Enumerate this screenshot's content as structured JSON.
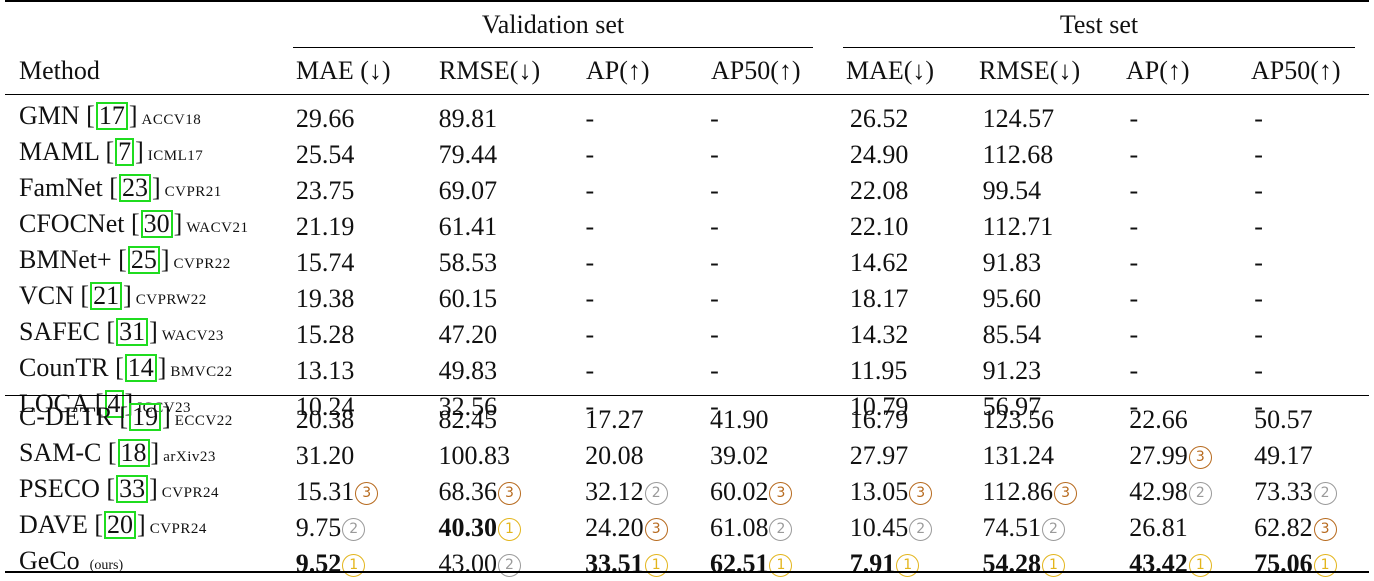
{
  "groups": {
    "validation": "Validation set",
    "test": "Test set"
  },
  "columns": [
    "Method",
    "MAE (↓)",
    "RMSE(↓)",
    "AP(↑)",
    "AP50(↑)",
    "MAE(↓)",
    "RMSE(↓)",
    "AP(↑)",
    "AP50(↑)"
  ],
  "rank_colors": {
    "1": "#e3b51c",
    "2": "#9a9a9a",
    "3": "#b76a1e"
  },
  "section1": [
    {
      "name": "GMN",
      "cite": "17",
      "venue": "ACCV18",
      "cells": [
        {
          "v": "29.66"
        },
        {
          "v": "89.81"
        },
        {
          "v": "-"
        },
        {
          "v": "-"
        },
        {
          "v": "26.52"
        },
        {
          "v": "124.57"
        },
        {
          "v": "-"
        },
        {
          "v": "-"
        }
      ]
    },
    {
      "name": "MAML",
      "cite": "7",
      "venue": "ICML17",
      "cells": [
        {
          "v": "25.54"
        },
        {
          "v": "79.44"
        },
        {
          "v": "-"
        },
        {
          "v": "-"
        },
        {
          "v": "24.90"
        },
        {
          "v": "112.68"
        },
        {
          "v": "-"
        },
        {
          "v": "-"
        }
      ]
    },
    {
      "name": "FamNet",
      "cite": "23",
      "venue": "CVPR21",
      "cells": [
        {
          "v": "23.75"
        },
        {
          "v": "69.07"
        },
        {
          "v": "-"
        },
        {
          "v": "-"
        },
        {
          "v": "22.08"
        },
        {
          "v": "99.54"
        },
        {
          "v": "-"
        },
        {
          "v": "-"
        }
      ]
    },
    {
      "name": "CFOCNet",
      "cite": "30",
      "venue": "WACV21",
      "cells": [
        {
          "v": "21.19"
        },
        {
          "v": "61.41"
        },
        {
          "v": "-"
        },
        {
          "v": "-"
        },
        {
          "v": "22.10"
        },
        {
          "v": "112.71"
        },
        {
          "v": "-"
        },
        {
          "v": "-"
        }
      ]
    },
    {
      "name": "BMNet+",
      "cite": "25",
      "venue": "CVPR22",
      "cells": [
        {
          "v": "15.74"
        },
        {
          "v": "58.53"
        },
        {
          "v": "-"
        },
        {
          "v": "-"
        },
        {
          "v": "14.62"
        },
        {
          "v": "91.83"
        },
        {
          "v": "-"
        },
        {
          "v": "-"
        }
      ]
    },
    {
      "name": "VCN",
      "cite": "21",
      "venue": "CVPRW22",
      "cells": [
        {
          "v": "19.38"
        },
        {
          "v": "60.15"
        },
        {
          "v": "-"
        },
        {
          "v": "-"
        },
        {
          "v": "18.17"
        },
        {
          "v": "95.60"
        },
        {
          "v": "-"
        },
        {
          "v": "-"
        }
      ]
    },
    {
      "name": "SAFEC",
      "cite": "31",
      "venue": "WACV23",
      "cells": [
        {
          "v": "15.28"
        },
        {
          "v": "47.20"
        },
        {
          "v": "-"
        },
        {
          "v": "-"
        },
        {
          "v": "14.32"
        },
        {
          "v": "85.54"
        },
        {
          "v": "-"
        },
        {
          "v": "-"
        }
      ]
    },
    {
      "name": "CounTR",
      "cite": "14",
      "venue": "BMVC22",
      "cells": [
        {
          "v": "13.13"
        },
        {
          "v": "49.83"
        },
        {
          "v": "-"
        },
        {
          "v": "-"
        },
        {
          "v": "11.95"
        },
        {
          "v": "91.23"
        },
        {
          "v": "-"
        },
        {
          "v": "-"
        }
      ]
    },
    {
      "name": "LOCA",
      "cite": "4",
      "venue": "ICCV23",
      "cells": [
        {
          "v": "10.24"
        },
        {
          "v": "32.56"
        },
        {
          "v": "-"
        },
        {
          "v": "-"
        },
        {
          "v": "10.79"
        },
        {
          "v": "56.97"
        },
        {
          "v": "-"
        },
        {
          "v": "-"
        }
      ]
    }
  ],
  "section2": [
    {
      "name": "C-DETR",
      "cite": "19",
      "venue": "ECCV22",
      "cells": [
        {
          "v": "20.38"
        },
        {
          "v": "82.45"
        },
        {
          "v": "17.27"
        },
        {
          "v": "41.90"
        },
        {
          "v": "16.79"
        },
        {
          "v": "123.56"
        },
        {
          "v": "22.66"
        },
        {
          "v": "50.57"
        }
      ]
    },
    {
      "name": "SAM-C",
      "cite": "18",
      "venue": "arXiv23",
      "cells": [
        {
          "v": "31.20"
        },
        {
          "v": "100.83"
        },
        {
          "v": "20.08"
        },
        {
          "v": "39.02"
        },
        {
          "v": "27.97"
        },
        {
          "v": "131.24"
        },
        {
          "v": "27.99",
          "r": "③",
          "k": 3
        },
        {
          "v": "49.17"
        }
      ]
    },
    {
      "name": "PSECO",
      "cite": "33",
      "venue": "CVPR24",
      "cells": [
        {
          "v": "15.31",
          "r": "③",
          "k": 3
        },
        {
          "v": "68.36",
          "r": "③",
          "k": 3
        },
        {
          "v": "32.12",
          "r": "②",
          "k": 2
        },
        {
          "v": "60.02",
          "r": "③",
          "k": 3
        },
        {
          "v": "13.05",
          "r": "③",
          "k": 3
        },
        {
          "v": "112.86",
          "r": "③",
          "k": 3
        },
        {
          "v": "42.98",
          "r": "②",
          "k": 2
        },
        {
          "v": "73.33",
          "r": "②",
          "k": 2
        }
      ]
    },
    {
      "name": "DAVE",
      "cite": "20",
      "venue": "CVPR24",
      "cells": [
        {
          "v": "9.75",
          "r": "②",
          "k": 2
        },
        {
          "v": "40.30",
          "r": "①",
          "k": 1,
          "b": true
        },
        {
          "v": "24.20",
          "r": "③",
          "k": 3
        },
        {
          "v": "61.08",
          "r": "②",
          "k": 2
        },
        {
          "v": "10.45",
          "r": "②",
          "k": 2
        },
        {
          "v": "74.51",
          "r": "②",
          "k": 2
        },
        {
          "v": "26.81"
        },
        {
          "v": "62.82",
          "r": "③",
          "k": 3
        }
      ]
    },
    {
      "name": "GeCo",
      "cite": "",
      "venue": "(ours)",
      "ours": true,
      "cells": [
        {
          "v": "9.52",
          "r": "①",
          "k": 1,
          "b": true
        },
        {
          "v": "43.00",
          "r": "②",
          "k": 2
        },
        {
          "v": "33.51",
          "r": "①",
          "k": 1,
          "b": true
        },
        {
          "v": "62.51",
          "r": "①",
          "k": 1,
          "b": true
        },
        {
          "v": "7.91",
          "r": "①",
          "k": 1,
          "b": true
        },
        {
          "v": "54.28",
          "r": "①",
          "k": 1,
          "b": true
        },
        {
          "v": "43.42",
          "r": "①",
          "k": 1,
          "b": true
        },
        {
          "v": "75.06",
          "r": "①",
          "k": 1,
          "b": true
        }
      ]
    }
  ]
}
